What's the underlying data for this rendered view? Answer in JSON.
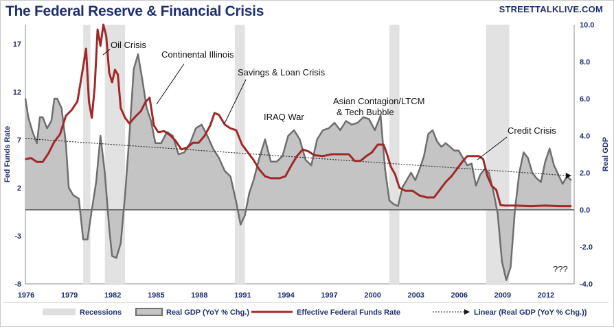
{
  "title": "The Federal Reserve & Financial Crisis",
  "brand": "STREETTALKLIVE.COM",
  "colors": {
    "title": "#1f2f6e",
    "gdp_fill": "#c4c4c4",
    "gdp_line": "#6e6e6e",
    "ffr_line": "#a02828",
    "recession": "#e2e2e2",
    "axis_text": "#1f2f6e"
  },
  "chart_data": {
    "type": "line",
    "title": "The Federal Reserve & Financial Crisis",
    "x_range": [
      1976,
      2014
    ],
    "x_ticks": [
      "1976",
      "1979",
      "1982",
      "1985",
      "1988",
      "1991",
      "1994",
      "1997",
      "2000",
      "2003",
      "2006",
      "2009",
      "2012"
    ],
    "left_axis": {
      "label": "Fed Funds Rate",
      "range": [
        -8,
        19
      ],
      "ticks": [
        "17",
        "12",
        "7",
        "2",
        "-3",
        "-8"
      ]
    },
    "right_axis": {
      "label": "Real GDP",
      "range": [
        -4,
        10
      ],
      "ticks": [
        "10.0",
        "8.0",
        "6.0",
        "4.0",
        "2.0",
        "0.0",
        "-2.0",
        "-4.0"
      ]
    },
    "recessions": [
      [
        1980.0,
        1980.5
      ],
      [
        1981.5,
        1982.9
      ],
      [
        1990.5,
        1991.2
      ],
      [
        2001.2,
        2001.9
      ],
      [
        2007.9,
        2009.5
      ]
    ],
    "series": [
      {
        "name": "Real GDP (YoY % Chg.)",
        "axis": "right",
        "style": "area",
        "x": [
          1976.0,
          1976.2,
          1976.5,
          1976.8,
          1977.0,
          1977.2,
          1977.5,
          1977.8,
          1978.0,
          1978.2,
          1978.5,
          1978.8,
          1979.0,
          1979.3,
          1979.7,
          1980.0,
          1980.3,
          1980.6,
          1980.9,
          1981.2,
          1981.5,
          1981.8,
          1982.0,
          1982.3,
          1982.6,
          1982.9,
          1983.2,
          1983.5,
          1983.8,
          1984.1,
          1984.4,
          1984.7,
          1985.0,
          1985.4,
          1985.8,
          1986.2,
          1986.6,
          1987.0,
          1987.4,
          1987.8,
          1988.2,
          1988.6,
          1989.0,
          1989.4,
          1989.8,
          1990.2,
          1990.6,
          1990.9,
          1991.2,
          1991.5,
          1991.8,
          1992.2,
          1992.6,
          1993.0,
          1993.4,
          1993.8,
          1994.2,
          1994.6,
          1995.0,
          1995.4,
          1995.8,
          1996.2,
          1996.6,
          1997.0,
          1997.4,
          1997.8,
          1998.2,
          1998.6,
          1999.0,
          1999.4,
          1999.8,
          2000.2,
          2000.6,
          2000.9,
          2001.2,
          2001.5,
          2001.8,
          2002.1,
          2002.4,
          2002.7,
          2003.0,
          2003.3,
          2003.6,
          2003.9,
          2004.2,
          2004.5,
          2004.8,
          2005.1,
          2005.4,
          2005.7,
          2006.0,
          2006.3,
          2006.6,
          2006.9,
          2007.2,
          2007.5,
          2007.8,
          2008.1,
          2008.4,
          2008.7,
          2009.0,
          2009.3,
          2009.6,
          2009.9,
          2010.2,
          2010.5,
          2010.8,
          2011.1,
          2011.4,
          2011.7,
          2012.0,
          2012.3,
          2012.6,
          2012.9,
          2013.2,
          2013.5,
          2013.8
        ],
        "y": [
          6.0,
          5.0,
          4.2,
          3.6,
          5.0,
          5.0,
          4.4,
          4.8,
          6.0,
          6.0,
          5.5,
          3.6,
          1.2,
          0.8,
          0.6,
          -1.6,
          -1.6,
          0.0,
          1.5,
          4.0,
          2.0,
          -1.0,
          -2.5,
          -2.6,
          -1.8,
          0.8,
          4.0,
          7.6,
          8.4,
          7.0,
          5.5,
          4.8,
          3.6,
          3.6,
          4.2,
          4.0,
          3.0,
          3.1,
          3.6,
          4.4,
          4.6,
          4.0,
          3.3,
          2.8,
          2.1,
          1.8,
          0.4,
          -0.8,
          -0.3,
          0.9,
          1.6,
          2.8,
          3.8,
          2.6,
          2.6,
          2.9,
          4.0,
          4.3,
          3.8,
          2.7,
          2.4,
          3.8,
          4.3,
          4.4,
          4.7,
          4.3,
          4.8,
          4.6,
          4.7,
          5.0,
          4.9,
          4.3,
          5.1,
          2.2,
          0.5,
          0.3,
          0.2,
          1.2,
          1.6,
          2.0,
          1.6,
          2.2,
          2.9,
          4.1,
          4.3,
          3.7,
          3.4,
          3.6,
          3.4,
          3.2,
          3.2,
          2.8,
          2.4,
          2.5,
          1.3,
          1.9,
          2.2,
          2.0,
          1.0,
          -0.2,
          -2.8,
          -3.8,
          -3.1,
          0.0,
          2.0,
          3.1,
          2.8,
          2.0,
          1.7,
          1.5,
          2.6,
          3.3,
          2.4,
          1.9,
          1.4,
          1.8,
          1.6
        ]
      },
      {
        "name": "Effective Federal Funds Rate",
        "axis": "left",
        "style": "line",
        "x": [
          1976.0,
          1976.4,
          1976.8,
          1977.2,
          1977.6,
          1978.0,
          1978.4,
          1978.8,
          1979.2,
          1979.6,
          1979.9,
          1980.2,
          1980.4,
          1980.6,
          1980.8,
          1981.0,
          1981.2,
          1981.4,
          1981.6,
          1981.8,
          1982.0,
          1982.2,
          1982.4,
          1982.6,
          1982.9,
          1983.2,
          1983.6,
          1984.0,
          1984.3,
          1984.6,
          1984.9,
          1985.2,
          1985.6,
          1986.0,
          1986.4,
          1986.8,
          1987.2,
          1987.6,
          1988.0,
          1988.4,
          1988.8,
          1989.1,
          1989.4,
          1989.8,
          1990.2,
          1990.6,
          1991.0,
          1991.4,
          1991.8,
          1992.2,
          1992.6,
          1993.0,
          1993.6,
          1994.0,
          1994.4,
          1994.8,
          1995.2,
          1995.6,
          1996.0,
          1996.6,
          1997.2,
          1997.8,
          1998.4,
          1998.8,
          1999.2,
          1999.6,
          2000.0,
          2000.4,
          2000.8,
          2001.0,
          2001.3,
          2001.6,
          2001.9,
          2002.3,
          2002.8,
          2003.3,
          2003.8,
          2004.3,
          2004.7,
          2005.1,
          2005.5,
          2005.9,
          2006.3,
          2006.6,
          2007.0,
          2007.4,
          2007.7,
          2008.0,
          2008.3,
          2008.6,
          2008.9,
          2009.2,
          2010.0,
          2011.0,
          2012.0,
          2013.0,
          2013.8
        ],
        "y": [
          5.0,
          5.1,
          4.7,
          4.7,
          5.6,
          6.8,
          7.6,
          9.5,
          10.1,
          11.0,
          13.7,
          16.5,
          11.0,
          9.3,
          12.5,
          18.5,
          16.8,
          19.0,
          17.8,
          14.0,
          13.0,
          14.3,
          13.8,
          10.3,
          9.3,
          8.7,
          9.4,
          10.0,
          10.9,
          11.4,
          8.5,
          7.8,
          7.9,
          7.5,
          6.9,
          6.0,
          6.2,
          6.7,
          6.7,
          7.4,
          8.5,
          9.8,
          9.6,
          8.6,
          8.2,
          8.0,
          6.5,
          5.7,
          4.9,
          3.9,
          3.2,
          3.0,
          3.0,
          3.2,
          4.3,
          5.3,
          6.0,
          5.8,
          5.4,
          5.3,
          5.5,
          5.5,
          5.5,
          4.8,
          4.8,
          5.3,
          5.7,
          6.5,
          6.5,
          5.7,
          4.2,
          3.4,
          2.0,
          1.7,
          1.7,
          1.2,
          1.0,
          1.0,
          1.8,
          2.6,
          3.2,
          4.0,
          4.8,
          5.3,
          5.3,
          5.3,
          5.0,
          3.2,
          2.2,
          1.8,
          0.2,
          0.15,
          0.15,
          0.1,
          0.15,
          0.1,
          0.1
        ]
      },
      {
        "name": "Linear (Real GDP (YoY % Chg.))",
        "axis": "right",
        "style": "dashed",
        "x": [
          1976.0,
          2013.8
        ],
        "y": [
          3.85,
          1.85
        ]
      }
    ],
    "legend": [
      "Recessions",
      "Real GDP (YoY % Chg.)",
      "Effective Federal Funds Rate",
      "Linear (Real GDP (YoY % Chg.))"
    ],
    "annotations": [
      {
        "text": "Oil Crisis"
      },
      {
        "text": "Continental Illinois"
      },
      {
        "text": "Savings & Loan Crisis"
      },
      {
        "text": "IRAQ War"
      },
      {
        "text": "Asian Contagion/LTCM"
      },
      {
        "text": "& Tech Bubble"
      },
      {
        "text": "Credit Crisis"
      },
      {
        "text": "???"
      }
    ]
  }
}
